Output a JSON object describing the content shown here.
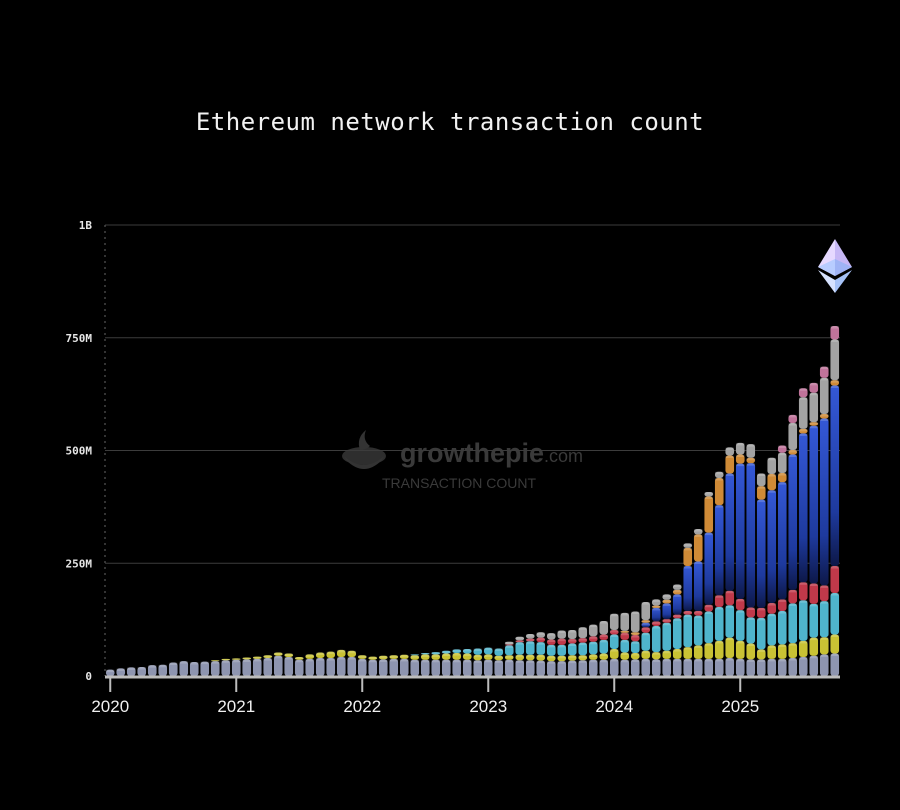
{
  "chart_data": {
    "type": "bar",
    "stacked": true,
    "title": "Ethereum network transaction count",
    "xlabel": "",
    "ylabel": "",
    "ylim": [
      0,
      1000000000
    ],
    "y_ticks": [
      {
        "value": 0,
        "label": "0"
      },
      {
        "value": 250000000,
        "label": "250M"
      },
      {
        "value": 500000000,
        "label": "500M"
      },
      {
        "value": 750000000,
        "label": "750M"
      },
      {
        "value": 1000000000,
        "label": "1B"
      }
    ],
    "x_ticks": [
      "2020",
      "2021",
      "2022",
      "2023",
      "2024",
      "2025"
    ],
    "grid": true,
    "watermark": {
      "brand": "growthepie",
      "suffix": ".com",
      "subtitle": "TRANSACTION COUNT"
    },
    "logo": "ethereum-diamond-icon",
    "series_colors": {
      "base": "#8e95b0",
      "yellow": "#c9c234",
      "teal": "#4fb4cc",
      "red": "#c0394a",
      "blue": "#2f50c9",
      "orange": "#cf8a36",
      "gray": "#a3a3a3",
      "pink": "#c0739a"
    },
    "months": [
      "2020-01",
      "2020-02",
      "2020-03",
      "2020-04",
      "2020-05",
      "2020-06",
      "2020-07",
      "2020-08",
      "2020-09",
      "2020-10",
      "2020-11",
      "2020-12",
      "2021-01",
      "2021-02",
      "2021-03",
      "2021-04",
      "2021-05",
      "2021-06",
      "2021-07",
      "2021-08",
      "2021-09",
      "2021-10",
      "2021-11",
      "2021-12",
      "2022-01",
      "2022-02",
      "2022-03",
      "2022-04",
      "2022-05",
      "2022-06",
      "2022-07",
      "2022-08",
      "2022-09",
      "2022-10",
      "2022-11",
      "2022-12",
      "2023-01",
      "2023-02",
      "2023-03",
      "2023-04",
      "2023-05",
      "2023-06",
      "2023-07",
      "2023-08",
      "2023-09",
      "2023-10",
      "2023-11",
      "2023-12",
      "2024-01",
      "2024-02",
      "2024-03",
      "2024-04",
      "2024-05",
      "2024-06",
      "2024-07",
      "2024-08",
      "2024-09",
      "2024-10",
      "2024-11",
      "2024-12",
      "2025-01",
      "2025-02",
      "2025-03",
      "2025-04",
      "2025-05",
      "2025-06",
      "2025-07",
      "2025-08",
      "2025-09",
      "2025-10"
    ],
    "series": [
      {
        "key": "base",
        "values": [
          14,
          17,
          19,
          20,
          24,
          25,
          30,
          33,
          31,
          32,
          33,
          35,
          36,
          37,
          38,
          40,
          45,
          42,
          36,
          38,
          40,
          40,
          42,
          42,
          38,
          36,
          37,
          38,
          38,
          36,
          36,
          36,
          36,
          36,
          36,
          35,
          36,
          35,
          36,
          35,
          35,
          34,
          33,
          33,
          34,
          35,
          36,
          36,
          38,
          36,
          37,
          38,
          37,
          38,
          38,
          38,
          38,
          38,
          38,
          40,
          38,
          37,
          37,
          38,
          38,
          40,
          42,
          45,
          48,
          50
        ]
      },
      {
        "key": "yellow",
        "values": [
          0,
          0,
          0,
          0,
          0,
          0,
          0,
          0,
          0,
          0,
          2,
          3,
          3,
          4,
          5,
          6,
          7,
          8,
          6,
          10,
          12,
          14,
          16,
          14,
          8,
          7,
          8,
          8,
          9,
          10,
          12,
          12,
          14,
          15,
          14,
          12,
          12,
          10,
          10,
          12,
          12,
          13,
          12,
          12,
          12,
          11,
          12,
          14,
          22,
          16,
          14,
          18,
          16,
          18,
          22,
          26,
          30,
          35,
          40,
          45,
          40,
          35,
          22,
          30,
          32,
          33,
          36,
          40,
          38,
          42
        ]
      },
      {
        "key": "teal",
        "values": [
          0,
          0,
          0,
          0,
          0,
          0,
          0,
          0,
          0,
          0,
          0,
          0,
          0,
          0,
          0,
          0,
          0,
          0,
          0,
          0,
          0,
          0,
          0,
          0,
          0,
          0,
          0,
          0,
          0,
          2,
          3,
          5,
          6,
          8,
          10,
          14,
          15,
          16,
          22,
          28,
          30,
          28,
          24,
          24,
          26,
          28,
          28,
          30,
          32,
          28,
          26,
          40,
          58,
          62,
          68,
          72,
          66,
          70,
          75,
          72,
          68,
          58,
          70,
          70,
          74,
          88,
          90,
          75,
          80,
          92
        ]
      },
      {
        "key": "red",
        "values": [
          0,
          0,
          0,
          0,
          0,
          0,
          0,
          0,
          0,
          0,
          0,
          0,
          0,
          0,
          0,
          0,
          0,
          0,
          0,
          0,
          0,
          0,
          0,
          0,
          0,
          0,
          0,
          0,
          0,
          0,
          0,
          0,
          0,
          0,
          0,
          0,
          0,
          0,
          2,
          4,
          6,
          10,
          12,
          14,
          10,
          10,
          12,
          12,
          10,
          16,
          14,
          12,
          10,
          8,
          8,
          8,
          10,
          15,
          26,
          32,
          25,
          22,
          22,
          24,
          26,
          30,
          40,
          45,
          35,
          60
        ]
      },
      {
        "key": "blue",
        "values": [
          0,
          0,
          0,
          0,
          0,
          0,
          0,
          0,
          0,
          0,
          0,
          0,
          0,
          0,
          0,
          0,
          0,
          0,
          0,
          0,
          0,
          0,
          0,
          0,
          0,
          0,
          0,
          0,
          0,
          0,
          0,
          0,
          0,
          0,
          0,
          0,
          0,
          0,
          0,
          0,
          0,
          0,
          0,
          0,
          0,
          0,
          0,
          0,
          0,
          0,
          0,
          10,
          30,
          35,
          45,
          100,
          110,
          160,
          200,
          260,
          300,
          320,
          240,
          250,
          260,
          300,
          330,
          350,
          370,
          400
        ]
      },
      {
        "key": "orange",
        "values": [
          0,
          0,
          0,
          0,
          0,
          0,
          0,
          0,
          0,
          0,
          0,
          0,
          0,
          0,
          0,
          0,
          0,
          0,
          0,
          0,
          0,
          0,
          0,
          0,
          0,
          0,
          0,
          0,
          0,
          0,
          0,
          0,
          0,
          0,
          0,
          0,
          0,
          0,
          0,
          0,
          0,
          0,
          0,
          0,
          0,
          0,
          0,
          0,
          0,
          4,
          6,
          6,
          5,
          8,
          10,
          40,
          60,
          80,
          60,
          40,
          20,
          12,
          30,
          36,
          20,
          10,
          10,
          8,
          10,
          12
        ]
      },
      {
        "key": "gray",
        "values": [
          0,
          0,
          0,
          0,
          0,
          0,
          0,
          0,
          0,
          0,
          0,
          0,
          0,
          0,
          0,
          0,
          0,
          0,
          0,
          0,
          0,
          0,
          0,
          0,
          0,
          0,
          0,
          0,
          0,
          0,
          0,
          0,
          0,
          0,
          0,
          0,
          0,
          0,
          6,
          8,
          10,
          12,
          14,
          18,
          20,
          24,
          26,
          30,
          36,
          40,
          46,
          40,
          14,
          12,
          12,
          10,
          12,
          10,
          14,
          18,
          26,
          30,
          28,
          36,
          45,
          60,
          70,
          65,
          80,
          90
        ]
      },
      {
        "key": "pink",
        "values": [
          0,
          0,
          0,
          0,
          0,
          0,
          0,
          0,
          0,
          0,
          0,
          0,
          0,
          0,
          0,
          0,
          0,
          0,
          0,
          0,
          0,
          0,
          0,
          0,
          0,
          0,
          0,
          0,
          0,
          0,
          0,
          0,
          0,
          0,
          0,
          0,
          0,
          0,
          0,
          0,
          0,
          0,
          0,
          0,
          0,
          0,
          0,
          0,
          0,
          0,
          0,
          0,
          0,
          0,
          0,
          0,
          0,
          0,
          0,
          0,
          0,
          0,
          0,
          0,
          16,
          18,
          20,
          22,
          25,
          30
        ]
      }
    ],
    "series_unit_multiplier": 1000000
  }
}
